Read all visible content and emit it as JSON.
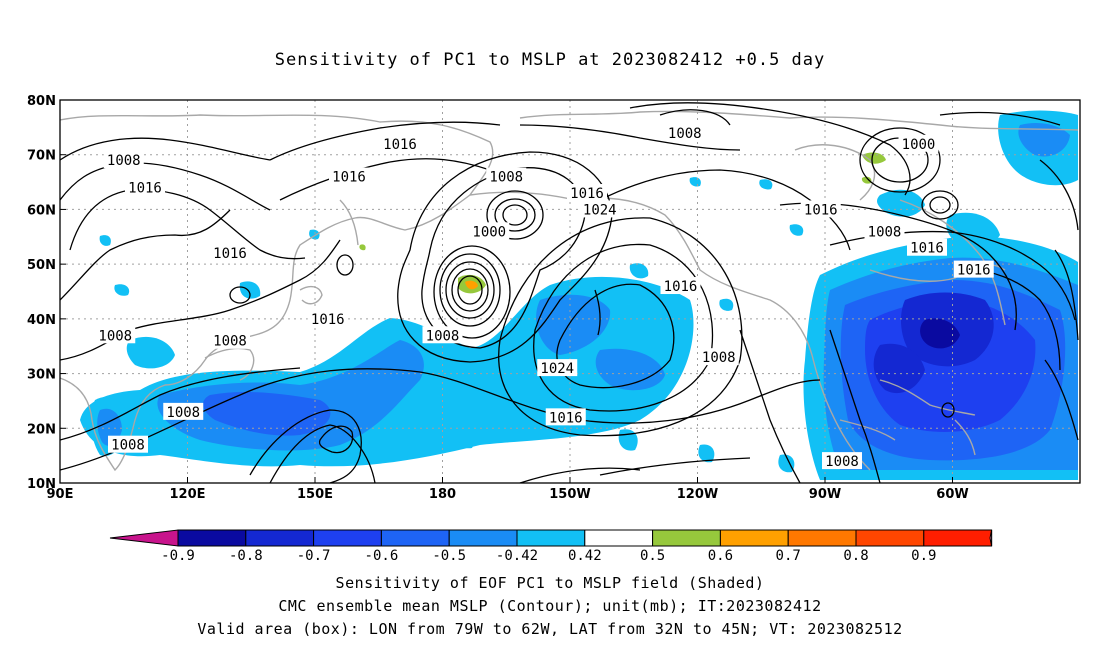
{
  "title": "Sensitivity of PC1 to MSLP at 2023082412 +0.5 day",
  "lat_labels": [
    "80N",
    "70N",
    "60N",
    "50N",
    "40N",
    "30N",
    "20N",
    "10N"
  ],
  "lon_labels": [
    "90E",
    "120E",
    "150E",
    "180",
    "150W",
    "120W",
    "90W",
    "60W"
  ],
  "contour_labels": [
    {
      "text": "1016",
      "lon": 170,
      "lat": 72
    },
    {
      "text": "1008",
      "lon": 105,
      "lat": 69
    },
    {
      "text": "1016",
      "lon": 110,
      "lat": 64
    },
    {
      "text": "1016",
      "lon": 158,
      "lat": 66
    },
    {
      "text": "1008",
      "lon": 195,
      "lat": 66
    },
    {
      "text": "1016",
      "lon": 214,
      "lat": 63
    },
    {
      "text": "1024",
      "lon": 217,
      "lat": 60
    },
    {
      "text": "1000",
      "lon": 191,
      "lat": 56
    },
    {
      "text": "1008",
      "lon": 237,
      "lat": 74
    },
    {
      "text": "1000",
      "lon": 292,
      "lat": 72
    },
    {
      "text": "1016",
      "lon": 269,
      "lat": 60
    },
    {
      "text": "1008",
      "lon": 284,
      "lat": 56
    },
    {
      "text": "1016",
      "lon": 294,
      "lat": 53
    },
    {
      "text": "1016",
      "lon": 305,
      "lat": 49
    },
    {
      "text": "1016",
      "lon": 130,
      "lat": 52
    },
    {
      "text": "1016",
      "lon": 236,
      "lat": 46
    },
    {
      "text": "1016",
      "lon": 153,
      "lat": 40
    },
    {
      "text": "1008",
      "lon": 103,
      "lat": 37
    },
    {
      "text": "1008",
      "lon": 130,
      "lat": 36
    },
    {
      "text": "1008",
      "lon": 180,
      "lat": 37
    },
    {
      "text": "1024",
      "lon": 207,
      "lat": 31
    },
    {
      "text": "1008",
      "lon": 245,
      "lat": 33
    },
    {
      "text": "1016",
      "lon": 209,
      "lat": 22
    },
    {
      "text": "1008",
      "lon": 119,
      "lat": 23
    },
    {
      "text": "1008",
      "lon": 106,
      "lat": 17
    },
    {
      "text": "1008",
      "lon": 274,
      "lat": 14
    }
  ],
  "colorbar": {
    "labels": [
      "-0.9",
      "-0.8",
      "-0.7",
      "-0.6",
      "-0.5",
      "-0.42",
      "0.42",
      "0.5",
      "0.6",
      "0.7",
      "0.8",
      "0.9"
    ],
    "colors": [
      "#0a0aa0",
      "#1428d2",
      "#1e40f0",
      "#1e64f5",
      "#1a8cf5",
      "#12c0f5",
      "#ffffff",
      "#96c83c",
      "#ffa000",
      "#ff7800",
      "#ff4600",
      "#ff1e00"
    ],
    "left_end": "#c8148c",
    "right_end": "#ff96c8"
  },
  "footer": {
    "line1": "Sensitivity of EOF PC1 to MSLP field (Shaded)",
    "line2": "CMC ensemble mean MSLP (Contour); unit(mb); IT:2023082412",
    "line3": "Valid area (box): LON from 79W to 62W, LAT from 32N to 45N; VT: 2023082512"
  }
}
